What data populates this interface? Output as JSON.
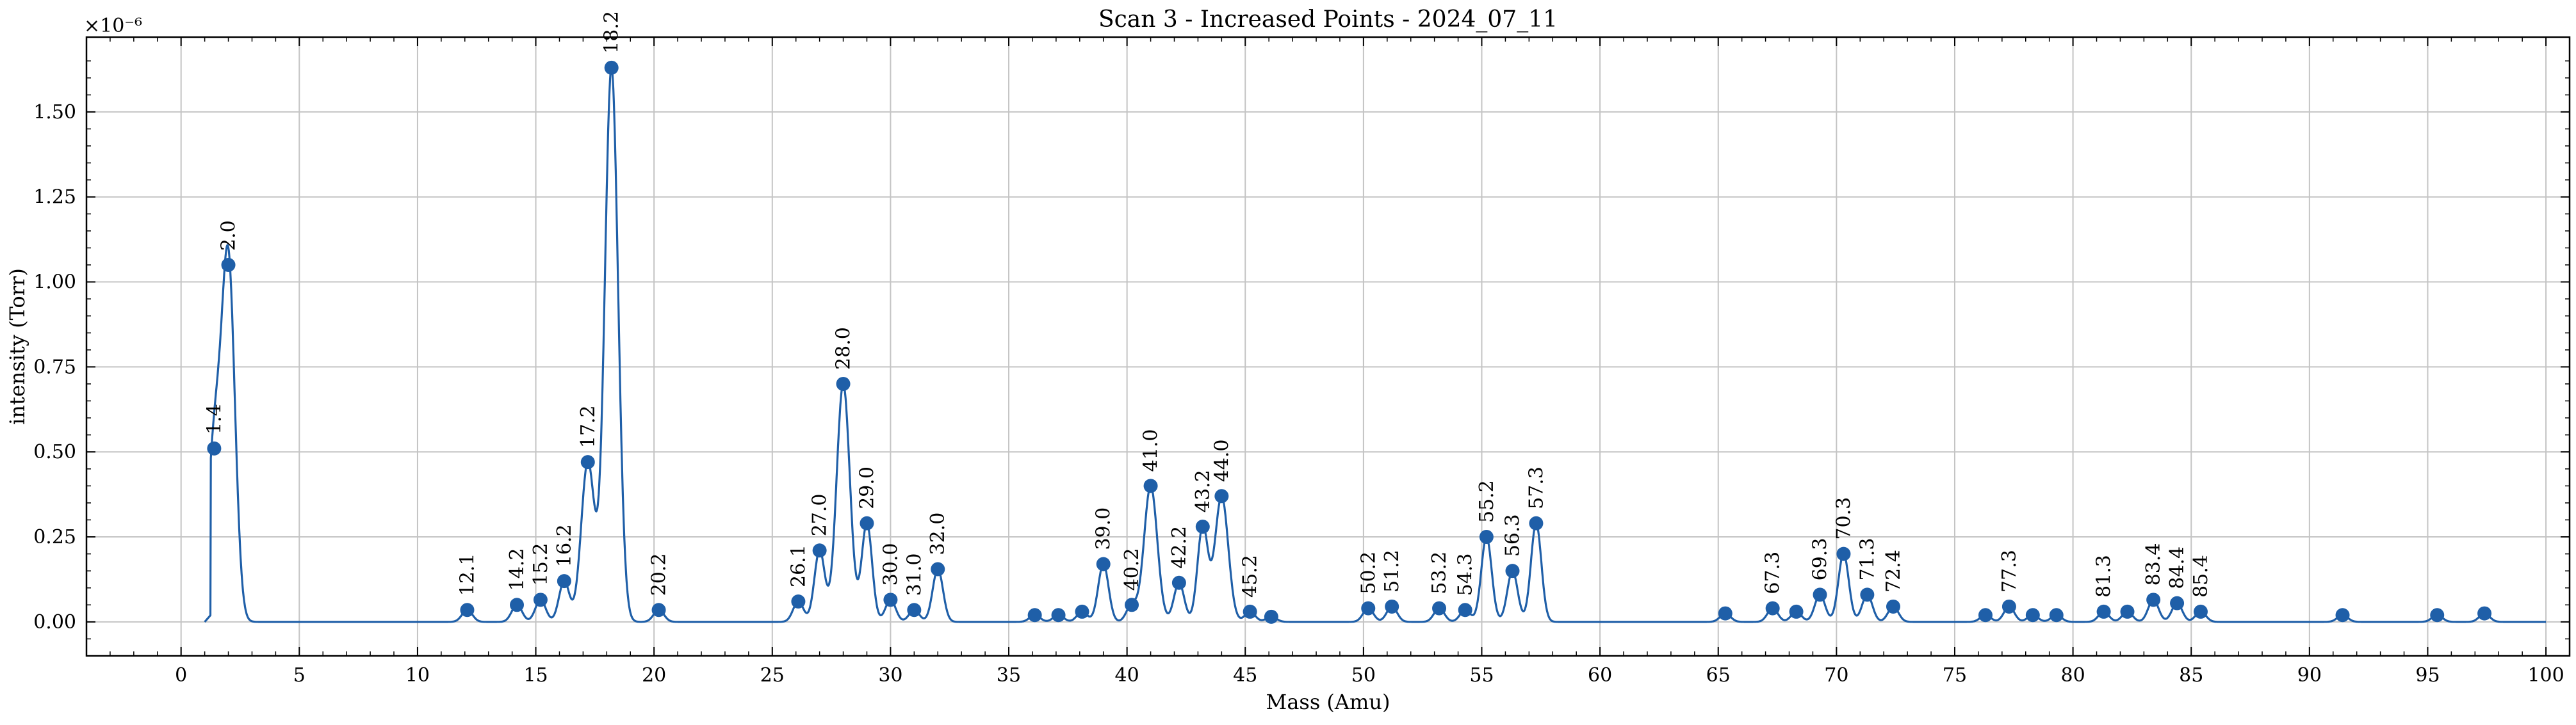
{
  "chart_data": {
    "type": "line",
    "title": "Scan 3 - Increased Points - 2024_07_11",
    "xlabel": "Mass (Amu)",
    "ylabel": "intensity (Torr)",
    "offset_label": "×10⁻⁶",
    "y_multiplier": 1e-06,
    "xlim": [
      -4,
      101
    ],
    "ylim": [
      -0.1,
      1.72
    ],
    "x_ticks": [
      0,
      5,
      10,
      15,
      20,
      25,
      30,
      35,
      40,
      45,
      50,
      55,
      60,
      65,
      70,
      75,
      80,
      85,
      90,
      95,
      100
    ],
    "x_tick_labels": [
      "0",
      "5",
      "10",
      "15",
      "20",
      "25",
      "30",
      "35",
      "40",
      "45",
      "50",
      "55",
      "60",
      "65",
      "70",
      "75",
      "80",
      "85",
      "90",
      "95",
      "100"
    ],
    "y_ticks": [
      0,
      0.25,
      0.5,
      0.75,
      1.0,
      1.25,
      1.5
    ],
    "y_tick_labels": [
      "0.00",
      "0.25",
      "0.50",
      "0.75",
      "1.00",
      "1.25",
      "1.50"
    ],
    "grid": true,
    "line_color": "#1f5fa8",
    "marker_color": "#1f5fa8",
    "peaks": [
      {
        "x": 1.4,
        "y": 0.51,
        "label": "1.4"
      },
      {
        "x": 2.0,
        "y": 1.05,
        "label": "2.0"
      },
      {
        "x": 12.1,
        "y": 0.035,
        "label": "12.1"
      },
      {
        "x": 14.2,
        "y": 0.05,
        "label": "14.2"
      },
      {
        "x": 15.2,
        "y": 0.065,
        "label": "15.2"
      },
      {
        "x": 16.2,
        "y": 0.12,
        "label": "16.2"
      },
      {
        "x": 17.2,
        "y": 0.47,
        "label": "17.2"
      },
      {
        "x": 18.2,
        "y": 1.63,
        "label": "18.2"
      },
      {
        "x": 20.2,
        "y": 0.035,
        "label": "20.2"
      },
      {
        "x": 26.1,
        "y": 0.06,
        "label": "26.1"
      },
      {
        "x": 27.0,
        "y": 0.21,
        "label": "27.0"
      },
      {
        "x": 28.0,
        "y": 0.7,
        "label": "28.0"
      },
      {
        "x": 29.0,
        "y": 0.29,
        "label": "29.0"
      },
      {
        "x": 30.0,
        "y": 0.065,
        "label": "30.0"
      },
      {
        "x": 31.0,
        "y": 0.035,
        "label": "31.0"
      },
      {
        "x": 32.0,
        "y": 0.155,
        "label": "32.0"
      },
      {
        "x": 36.1,
        "y": 0.02,
        "label": ""
      },
      {
        "x": 37.1,
        "y": 0.02,
        "label": ""
      },
      {
        "x": 38.1,
        "y": 0.03,
        "label": ""
      },
      {
        "x": 39.0,
        "y": 0.17,
        "label": "39.0"
      },
      {
        "x": 40.2,
        "y": 0.05,
        "label": "40.2"
      },
      {
        "x": 41.0,
        "y": 0.4,
        "label": "41.0"
      },
      {
        "x": 42.2,
        "y": 0.115,
        "label": "42.2"
      },
      {
        "x": 43.2,
        "y": 0.28,
        "label": "43.2"
      },
      {
        "x": 44.0,
        "y": 0.37,
        "label": "44.0"
      },
      {
        "x": 45.2,
        "y": 0.03,
        "label": "45.2"
      },
      {
        "x": 46.1,
        "y": 0.015,
        "label": ""
      },
      {
        "x": 50.2,
        "y": 0.04,
        "label": "50.2"
      },
      {
        "x": 51.2,
        "y": 0.045,
        "label": "51.2"
      },
      {
        "x": 53.2,
        "y": 0.04,
        "label": "53.2"
      },
      {
        "x": 54.3,
        "y": 0.035,
        "label": "54.3"
      },
      {
        "x": 55.2,
        "y": 0.25,
        "label": "55.2"
      },
      {
        "x": 56.3,
        "y": 0.15,
        "label": "56.3"
      },
      {
        "x": 57.3,
        "y": 0.29,
        "label": "57.3"
      },
      {
        "x": 65.3,
        "y": 0.025,
        "label": ""
      },
      {
        "x": 67.3,
        "y": 0.04,
        "label": "67.3"
      },
      {
        "x": 68.3,
        "y": 0.03,
        "label": ""
      },
      {
        "x": 69.3,
        "y": 0.08,
        "label": "69.3"
      },
      {
        "x": 70.3,
        "y": 0.2,
        "label": "70.3"
      },
      {
        "x": 71.3,
        "y": 0.08,
        "label": "71.3"
      },
      {
        "x": 72.4,
        "y": 0.045,
        "label": "72.4"
      },
      {
        "x": 76.3,
        "y": 0.02,
        "label": ""
      },
      {
        "x": 77.3,
        "y": 0.045,
        "label": "77.3"
      },
      {
        "x": 78.3,
        "y": 0.02,
        "label": ""
      },
      {
        "x": 79.3,
        "y": 0.02,
        "label": ""
      },
      {
        "x": 81.3,
        "y": 0.03,
        "label": "81.3"
      },
      {
        "x": 82.3,
        "y": 0.03,
        "label": ""
      },
      {
        "x": 83.4,
        "y": 0.065,
        "label": "83.4"
      },
      {
        "x": 84.4,
        "y": 0.055,
        "label": "84.4"
      },
      {
        "x": 85.4,
        "y": 0.03,
        "label": "85.4"
      },
      {
        "x": 91.4,
        "y": 0.02,
        "label": ""
      },
      {
        "x": 95.4,
        "y": 0.02,
        "label": ""
      },
      {
        "x": 97.4,
        "y": 0.025,
        "label": ""
      }
    ]
  }
}
